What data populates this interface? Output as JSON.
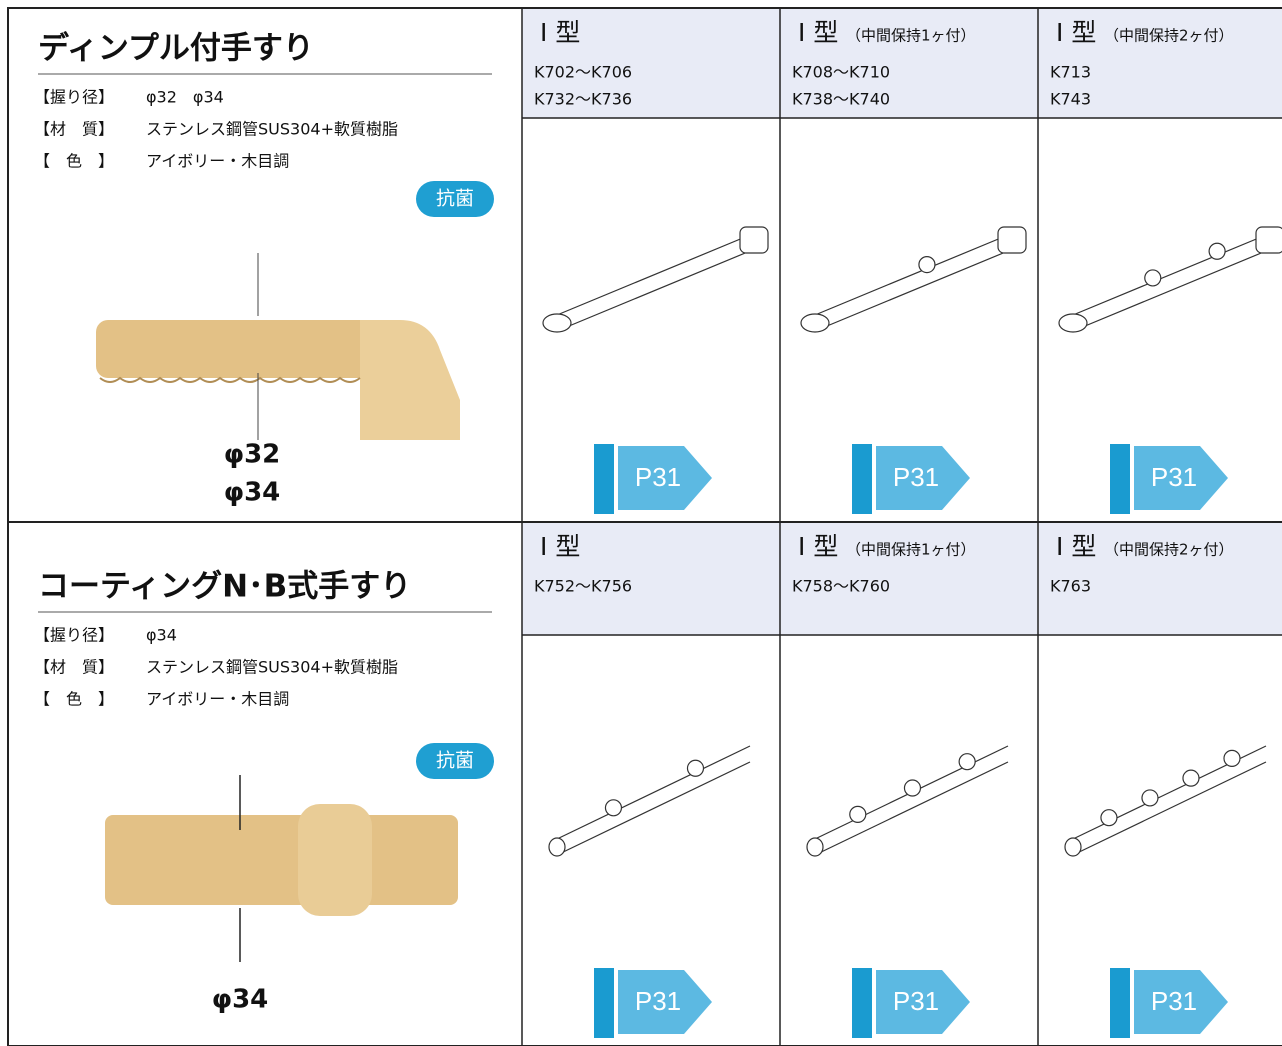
{
  "sections": [
    {
      "title": "ディンプル付手すり",
      "specs": [
        {
          "label": "【握り径】",
          "value": "φ32　φ34"
        },
        {
          "label": "【材　質】",
          "value": "ステンレス鋼管SUS304+軟質樹脂"
        },
        {
          "label": "【　色　】",
          "value": "アイボリー・木目調"
        }
      ],
      "badge": "抗菌",
      "dimensions": [
        "φ32",
        "φ34"
      ],
      "products": [
        {
          "type": "I 型",
          "codes": [
            "K702～K706",
            "K732～K736"
          ],
          "link": "P31"
        },
        {
          "type": "I 型",
          "note": "（中間保持1ヶ付）",
          "codes": [
            "K708～K710",
            "K738～K740"
          ],
          "link": "P31"
        },
        {
          "type": "I 型",
          "note": "（中間保持2ヶ付）",
          "codes": [
            "K713",
            "K743"
          ],
          "link": "P31"
        }
      ]
    },
    {
      "title": "コーティングN･B式手すり",
      "specs": [
        {
          "label": "【握り径】",
          "value": "φ34"
        },
        {
          "label": "【材　質】",
          "value": "ステンレス鋼管SUS304+軟質樹脂"
        },
        {
          "label": "【　色　】",
          "value": "アイボリー・木目調"
        }
      ],
      "badge": "抗菌",
      "dimensions": [
        "φ34"
      ],
      "products": [
        {
          "type": "I 型",
          "codes": [
            "K752～K756"
          ],
          "link": "P31"
        },
        {
          "type": "I 型",
          "note": "（中間保持1ヶ付）",
          "codes": [
            "K758～K760"
          ],
          "link": "P31"
        },
        {
          "type": "I 型",
          "note": "（中間保持2ヶ付）",
          "codes": [
            "K763"
          ],
          "link": "P31"
        }
      ]
    }
  ]
}
